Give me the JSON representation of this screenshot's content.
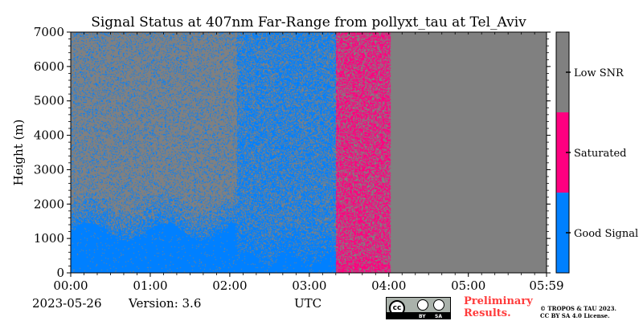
{
  "chart_data": {
    "type": "heatmap",
    "title": "Signal Status at 407nm Far-Range from pollyxt_tau at Tel_Aviv",
    "xlabel": "",
    "ylabel": "Height (m)",
    "x_tick_labels": [
      "00:00",
      "01:00",
      "02:00",
      "03:00",
      "04:00",
      "05:00",
      "05:59"
    ],
    "x_tick_minutes": [
      0,
      60,
      120,
      180,
      240,
      300,
      359
    ],
    "xlim_minutes": [
      0,
      359
    ],
    "y_ticks": [
      0,
      1000,
      2000,
      3000,
      4000,
      5000,
      6000,
      7000
    ],
    "ylim": [
      0,
      7000
    ],
    "colorbar": {
      "labels": [
        "Good Signal",
        "Saturated",
        "Low SNR"
      ],
      "colors": [
        "#0080ff",
        "#ff0080",
        "#808080"
      ]
    },
    "segments": [
      {
        "start_min": 0,
        "end_min": 125,
        "state": "mixed",
        "solid_blue_below_m": 1200,
        "upper_blue_fraction": 0.18
      },
      {
        "start_min": 125,
        "end_min": 200,
        "state": "mixed",
        "solid_blue_below_m": 400,
        "upper_blue_fraction": 0.6
      },
      {
        "start_min": 200,
        "end_min": 241,
        "state": "Saturated",
        "pink_fraction": 0.6
      },
      {
        "start_min": 241,
        "end_min": 359,
        "state": "Low SNR"
      }
    ]
  },
  "footer": {
    "date": "2023-05-26",
    "version": "Version: 3.6",
    "time_label": "UTC",
    "preliminary_line1": "Preliminary",
    "preliminary_line2": "Results.",
    "copyright_line1": "© TROPOS & TAU 2023.",
    "copyright_line2": "CC BY SA 4.0 License."
  },
  "license_badge": {
    "cc": "cc",
    "by": "BY",
    "sa": "SA"
  }
}
